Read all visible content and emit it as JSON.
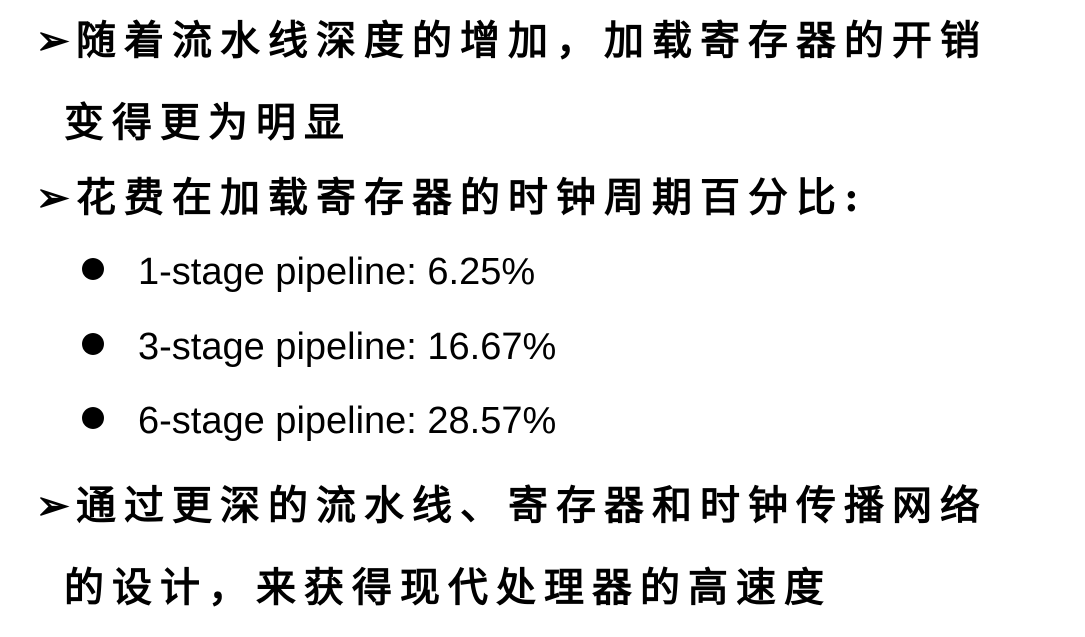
{
  "bullets": [
    {
      "marker": "➢",
      "line1": "随着流水线深度的增加，加载寄存器的开销",
      "line2": "变得更为明显"
    },
    {
      "marker": "➢",
      "line1": "花费在加载寄存器的时钟周期百分比:"
    },
    {
      "marker": "➢",
      "line1": "通过更深的流水线、寄存器和时钟传播网络",
      "line2": "的设计，来获得现代处理器的高速度"
    }
  ],
  "sub_items": [
    "1-stage pipeline: 6.25%",
    "3-stage pipeline: 16.67%",
    "6-stage pipeline: 28.57%"
  ]
}
